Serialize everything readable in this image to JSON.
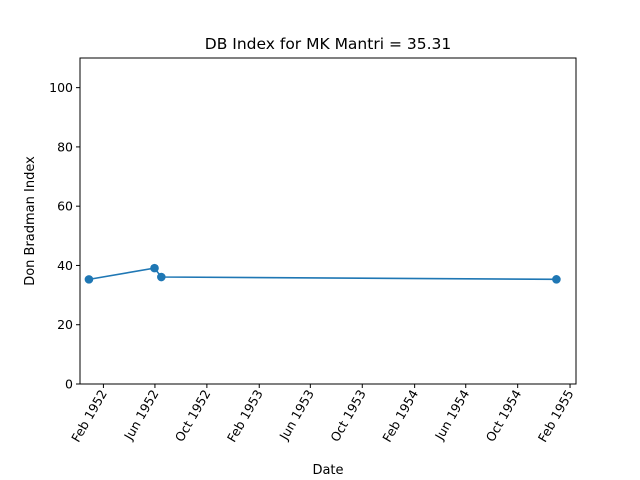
{
  "chart_data": {
    "type": "line",
    "title": "DB Index for MK Mantri = 35.31",
    "xlabel": "Date",
    "ylabel": "Don Bradman Index",
    "ylim": [
      0,
      110
    ],
    "xlim": [
      "1951-12-08",
      "1955-02-15"
    ],
    "grid": false,
    "line_color": "#1f77b4",
    "marker": "circle",
    "yticks": [
      0,
      20,
      40,
      60,
      80,
      100
    ],
    "xticks": [
      {
        "date": "1952-02-01",
        "label": "Feb 1952"
      },
      {
        "date": "1952-06-01",
        "label": "Jun 1952"
      },
      {
        "date": "1952-10-01",
        "label": "Oct 1952"
      },
      {
        "date": "1953-02-01",
        "label": "Feb 1953"
      },
      {
        "date": "1953-06-01",
        "label": "Jun 1953"
      },
      {
        "date": "1953-10-01",
        "label": "Oct 1953"
      },
      {
        "date": "1954-02-01",
        "label": "Feb 1954"
      },
      {
        "date": "1954-06-01",
        "label": "Jun 1954"
      },
      {
        "date": "1954-10-01",
        "label": "Oct 1954"
      },
      {
        "date": "1955-02-01",
        "label": "Feb 1955"
      }
    ],
    "series": [
      {
        "points": [
          {
            "x": "1951-12-29",
            "y": 35.3
          },
          {
            "x": "1952-05-31",
            "y": 39.1
          },
          {
            "x": "1952-06-16",
            "y": 36.1
          },
          {
            "x": "1954-12-31",
            "y": 35.31
          }
        ]
      }
    ]
  }
}
